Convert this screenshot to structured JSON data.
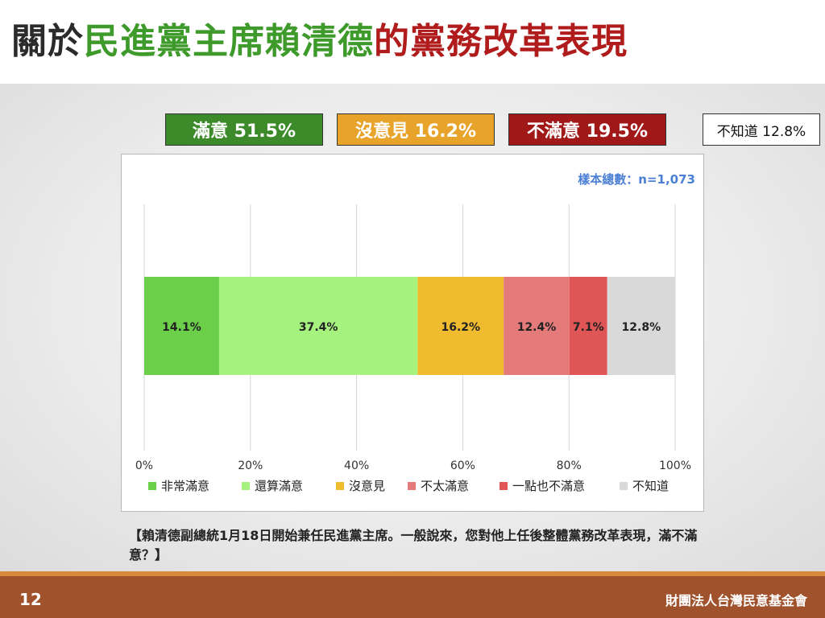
{
  "title": {
    "part1": "關於",
    "part2": "民進黨主席賴清德",
    "part3": "的黨務改革表現",
    "colors": {
      "part1": "#2b2b2b",
      "part2": "#3e9a2a",
      "part3": "#b01c1c"
    }
  },
  "summary": [
    {
      "label": "滿意 51.5%",
      "bg": "#3d8a2a",
      "fg": "#ffffff"
    },
    {
      "label": "沒意見 16.2%",
      "bg": "#e8a32a",
      "fg": "#ffffff"
    },
    {
      "label": "不滿意 19.5%",
      "bg": "#a01818",
      "fg": "#ffffff"
    },
    {
      "label": "不知道 12.8%",
      "bg": "#ffffff",
      "fg": "#111111"
    }
  ],
  "sample_note": "樣本總數：n=1,073",
  "question": "【賴清德副總統1月18日開始兼任民進黨主席。一般說來，您對他上任後整體黨務改革表現，滿不滿意？】",
  "footer": {
    "page_number": "12",
    "organization": "財團法人台灣民意基金會"
  },
  "chart_data": {
    "type": "bar",
    "orientation": "horizontal-stacked",
    "xlim": [
      0,
      100
    ],
    "ticks": [
      "0%",
      "20%",
      "40%",
      "60%",
      "80%",
      "100%"
    ],
    "tick_values": [
      0,
      20,
      40,
      60,
      80,
      100
    ],
    "grid": true,
    "legend_position": "bottom",
    "series": [
      {
        "name": "非常滿意",
        "value": 14.1,
        "label": "14.1%",
        "color": "#6bcf4a"
      },
      {
        "name": "還算滿意",
        "value": 37.4,
        "label": "37.4%",
        "color": "#a6f27e"
      },
      {
        "name": "沒意見",
        "value": 16.2,
        "label": "16.2%",
        "color": "#f0bb2e"
      },
      {
        "name": "不太滿意",
        "value": 12.4,
        "label": "12.4%",
        "color": "#e47a7a"
      },
      {
        "name": "一點也不滿意",
        "value": 7.1,
        "label": "7.1%",
        "color": "#e05555"
      },
      {
        "name": "不知道",
        "value": 12.8,
        "label": "12.8%",
        "color": "#d9d9d9"
      }
    ]
  }
}
